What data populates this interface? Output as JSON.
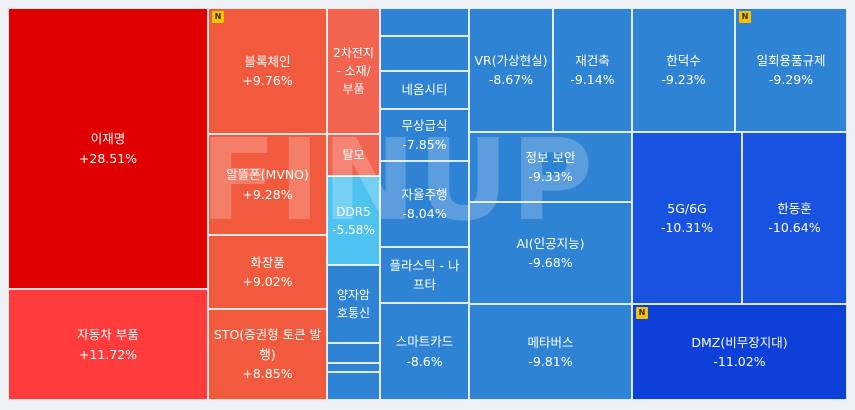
{
  "watermark": "FINUP",
  "badge_text": "N",
  "chart_data": {
    "type": "heatmap",
    "metric": "change_percent",
    "colors": {
      "up_strong": "#e00000",
      "up": "#ff3b3b",
      "up_mid": "#f25a3e",
      "up_light": "#f26350",
      "cyan": "#4fc3f0",
      "down": "#2f83d4",
      "down_mid": "#2a6fd8",
      "down_strong": "#1752e0",
      "down_deep": "#0d3fd9"
    },
    "tiles": [
      {
        "label": "이재명",
        "value": "+28.51%",
        "change": 28.51
      },
      {
        "label": "자동차 부품",
        "value": "+11.72%",
        "change": 11.72
      },
      {
        "label": "블록체인",
        "value": "+9.76%",
        "change": 9.76,
        "badge": true
      },
      {
        "label": "알뜰폰(MVNO)",
        "value": "+9.28%",
        "change": 9.28
      },
      {
        "label": "화장품",
        "value": "+9.02%",
        "change": 9.02
      },
      {
        "label": "STO(증권형 토큰 발행)",
        "value": "+8.85%",
        "change": 8.85
      },
      {
        "label": "2차전지 - 소재/부품",
        "value": "",
        "change": null
      },
      {
        "label": "탈모",
        "value": "",
        "change": null
      },
      {
        "label": "DDR5",
        "value": "-5.58%",
        "change": -5.58
      },
      {
        "label": "양자암호통신",
        "value": "",
        "change": null
      },
      {
        "label": "",
        "value": "",
        "change": null
      },
      {
        "label": "",
        "value": "",
        "change": null
      },
      {
        "label": "",
        "value": "",
        "change": null
      },
      {
        "label": "",
        "value": "",
        "change": null
      },
      {
        "label": "",
        "value": "",
        "change": null
      },
      {
        "label": "",
        "value": "",
        "change": null
      },
      {
        "label": "네옴시티",
        "value": "",
        "change": null
      },
      {
        "label": "무상급식",
        "value": "-7.85%",
        "change": -7.85
      },
      {
        "label": "자율주행",
        "value": "-8.04%",
        "change": -8.04
      },
      {
        "label": "플라스틱 - 나프타",
        "value": "",
        "change": null
      },
      {
        "label": "스마트카드",
        "value": "-8.6%",
        "change": -8.6
      },
      {
        "label": "VR(가상현실)",
        "value": "-8.67%",
        "change": -8.67
      },
      {
        "label": "재건축",
        "value": "-9.14%",
        "change": -9.14
      },
      {
        "label": "한덕수",
        "value": "-9.23%",
        "change": -9.23
      },
      {
        "label": "일회용품규제",
        "value": "-9.29%",
        "change": -9.29,
        "badge": true
      },
      {
        "label": "정보 보안",
        "value": "-9.33%",
        "change": -9.33
      },
      {
        "label": "AI(인공지능)",
        "value": "-9.68%",
        "change": -9.68
      },
      {
        "label": "5G/6G",
        "value": "-10.31%",
        "change": -10.31
      },
      {
        "label": "한동훈",
        "value": "-10.64%",
        "change": -10.64
      },
      {
        "label": "메타버스",
        "value": "-9.81%",
        "change": -9.81
      },
      {
        "label": "DMZ(비무장지대)",
        "value": "-11.02%",
        "change": -11.02,
        "badge": true
      }
    ]
  }
}
